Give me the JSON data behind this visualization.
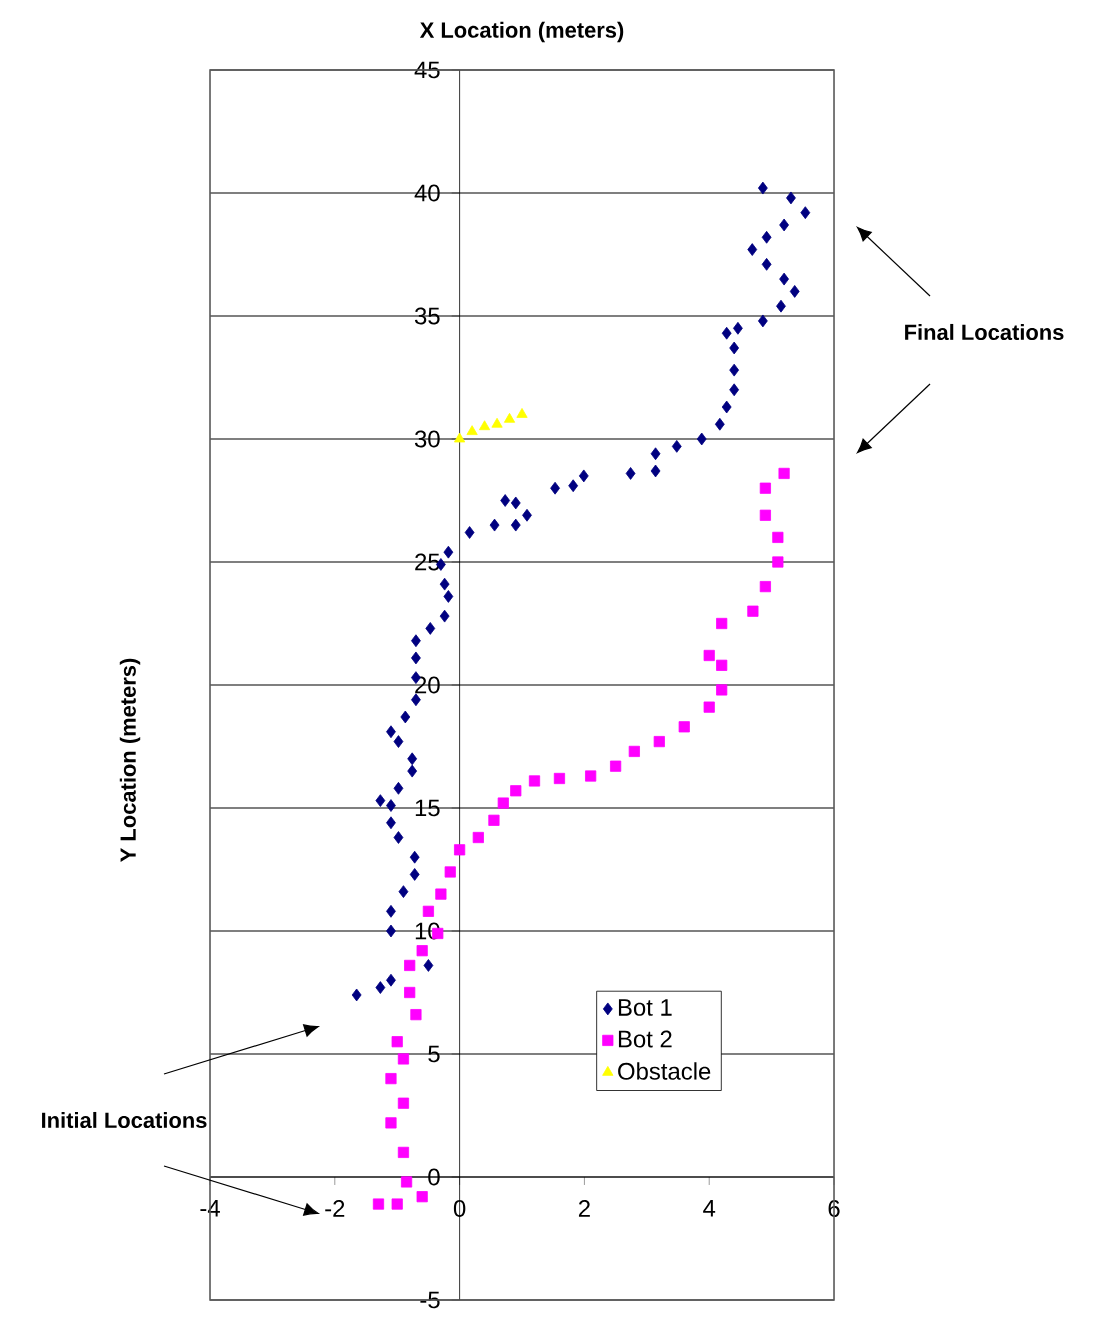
{
  "chart_data": {
    "type": "scatter",
    "xlabel": "X Location (meters)",
    "ylabel": "Y Location (meters)",
    "xlim": [
      -4,
      6
    ],
    "ylim": [
      -5,
      45
    ],
    "xticks": [
      -4,
      -2,
      0,
      2,
      4,
      6
    ],
    "yticks": [
      -5,
      0,
      5,
      10,
      15,
      20,
      25,
      30,
      35,
      40,
      45
    ],
    "grid": "y",
    "legend": "bottom right",
    "annotations": [
      "Final Locations",
      "Initial Locations"
    ],
    "series": [
      {
        "name": "Bot 1",
        "color": "#000080",
        "marker": "diamond",
        "x": [
          -1.65,
          -1.27,
          -1.1,
          -0.5,
          -1.1,
          -1.1,
          -0.9,
          -0.72,
          -0.72,
          -0.98,
          -1.1,
          -1.1,
          -1.27,
          -0.98,
          -0.76,
          -0.76,
          -0.98,
          -1.1,
          -0.87,
          -0.7,
          -0.7,
          -0.7,
          -0.7,
          -0.47,
          -0.24,
          -0.18,
          -0.24,
          -0.3,
          -0.18,
          0.16,
          0.56,
          0.9,
          1.08,
          0.9,
          0.73,
          1.53,
          1.82,
          1.99,
          2.74,
          3.14,
          3.14,
          3.48,
          3.88,
          4.17,
          4.28,
          4.4,
          4.4,
          4.4,
          4.28,
          4.46,
          4.86,
          5.15,
          5.37,
          5.2,
          4.92,
          4.69,
          4.92,
          5.2,
          5.54,
          5.31,
          4.86
        ],
        "values": [
          7.4,
          7.7,
          8.0,
          8.6,
          10.0,
          10.8,
          11.6,
          12.3,
          13.0,
          13.8,
          14.4,
          15.1,
          15.3,
          15.8,
          16.5,
          17.0,
          17.7,
          18.1,
          18.7,
          19.4,
          20.3,
          21.1,
          21.8,
          22.3,
          22.8,
          23.6,
          24.1,
          24.9,
          25.4,
          26.2,
          26.5,
          26.5,
          26.9,
          27.4,
          27.5,
          28.0,
          28.1,
          28.5,
          28.6,
          28.7,
          29.4,
          29.7,
          30.0,
          30.6,
          31.3,
          32.0,
          32.8,
          33.7,
          34.3,
          34.5,
          34.8,
          35.4,
          36.0,
          36.5,
          37.1,
          37.7,
          38.2,
          38.7,
          39.2,
          39.8,
          40.2
        ]
      },
      {
        "name": "Bot 2",
        "color": "#ff00ff",
        "marker": "square",
        "x": [
          -1.3,
          -1.0,
          -0.6,
          -0.85,
          -0.9,
          -1.1,
          -0.9,
          -1.1,
          -0.9,
          -1.0,
          -0.7,
          -0.8,
          -0.8,
          -0.6,
          -0.35,
          -0.5,
          -0.3,
          -0.15,
          0.0,
          0.3,
          0.55,
          0.7,
          0.9,
          1.2,
          1.6,
          2.1,
          2.5,
          2.8,
          3.2,
          3.6,
          4.0,
          4.2,
          4.2,
          4.0,
          4.2,
          4.7,
          4.9,
          5.1,
          5.1,
          4.9,
          4.9,
          5.2
        ],
        "values": [
          -1.1,
          -1.1,
          -0.8,
          -0.2,
          1.0,
          2.2,
          3.0,
          4.0,
          4.8,
          5.5,
          6.6,
          7.5,
          8.6,
          9.2,
          9.9,
          10.8,
          11.5,
          12.4,
          13.3,
          13.8,
          14.5,
          15.2,
          15.7,
          16.1,
          16.2,
          16.3,
          16.7,
          17.3,
          17.7,
          18.3,
          19.1,
          19.8,
          20.8,
          21.2,
          22.5,
          23.0,
          24.0,
          25.0,
          26.0,
          26.9,
          28.0,
          28.6
        ]
      },
      {
        "name": "Obstacle",
        "color": "#ffff00",
        "marker": "triangle",
        "x": [
          0.0,
          0.2,
          0.4,
          0.6,
          0.8,
          1.0
        ],
        "values": [
          30.0,
          30.3,
          30.5,
          30.6,
          30.8,
          31.0
        ]
      }
    ]
  }
}
